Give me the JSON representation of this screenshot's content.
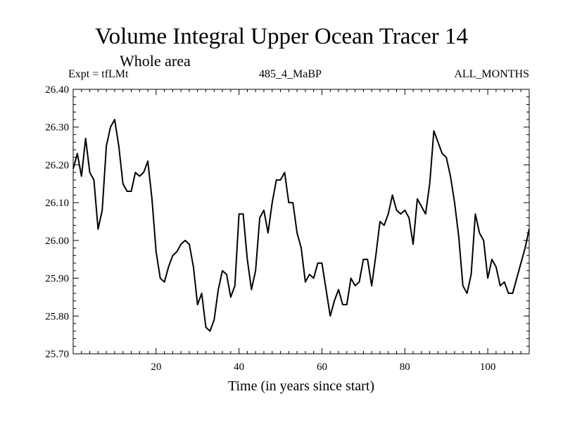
{
  "header": {
    "title": "Volume Integral Upper Ocean Tracer 14",
    "subtitle": "Whole area",
    "expt": "Expt = tfLMt",
    "run": "485_4_MaBP",
    "months": "ALL_MONTHS"
  },
  "chart_data": {
    "type": "line",
    "title": "Volume Integral Upper Ocean Tracer 14",
    "subtitle": "Whole area",
    "xlabel": "Time (in years since start)",
    "ylabel": "",
    "xlim": [
      0,
      110
    ],
    "ylim": [
      25.7,
      26.4
    ],
    "xticks": [
      20,
      40,
      60,
      80,
      100
    ],
    "xtick_labels": [
      "20",
      "40",
      "60",
      "80",
      "100"
    ],
    "yticks": [
      25.7,
      25.8,
      25.9,
      26.0,
      26.1,
      26.2,
      26.3,
      26.4
    ],
    "ytick_labels": [
      "25.70",
      "25.80",
      "25.90",
      "26.00",
      "26.10",
      "26.20",
      "26.30",
      "26.40"
    ],
    "series": [
      {
        "name": "Tracer 14",
        "x": [
          0,
          1,
          2,
          3,
          4,
          5,
          6,
          7,
          8,
          9,
          10,
          11,
          12,
          13,
          14,
          15,
          16,
          17,
          18,
          19,
          20,
          21,
          22,
          23,
          24,
          25,
          26,
          27,
          28,
          29,
          30,
          31,
          32,
          33,
          34,
          35,
          36,
          37,
          38,
          39,
          40,
          41,
          42,
          43,
          44,
          45,
          46,
          47,
          48,
          49,
          50,
          51,
          52,
          53,
          54,
          55,
          56,
          57,
          58,
          59,
          60,
          61,
          62,
          63,
          64,
          65,
          66,
          67,
          68,
          69,
          70,
          71,
          72,
          73,
          74,
          75,
          76,
          77,
          78,
          79,
          80,
          81,
          82,
          83,
          84,
          85,
          86,
          87,
          88,
          89,
          90,
          91,
          92,
          93,
          94,
          95,
          96,
          97,
          98,
          99,
          100,
          101,
          102,
          103,
          104,
          105,
          106,
          107,
          108,
          109,
          110
        ],
        "values": [
          26.19,
          26.23,
          26.17,
          26.27,
          26.18,
          26.16,
          26.03,
          26.08,
          26.25,
          26.3,
          26.32,
          26.25,
          26.15,
          26.13,
          26.13,
          26.18,
          26.17,
          26.18,
          26.21,
          26.11,
          25.97,
          25.9,
          25.89,
          25.93,
          25.96,
          25.97,
          25.99,
          26.0,
          25.99,
          25.93,
          25.83,
          25.86,
          25.77,
          25.76,
          25.79,
          25.87,
          25.92,
          25.91,
          25.85,
          25.88,
          26.07,
          26.07,
          25.95,
          25.87,
          25.92,
          26.06,
          26.08,
          26.02,
          26.1,
          26.16,
          26.16,
          26.18,
          26.1,
          26.1,
          26.02,
          25.98,
          25.89,
          25.91,
          25.9,
          25.94,
          25.94,
          25.87,
          25.8,
          25.84,
          25.87,
          25.83,
          25.83,
          25.9,
          25.88,
          25.89,
          25.95,
          25.95,
          25.88,
          25.96,
          26.05,
          26.04,
          26.07,
          26.12,
          26.08,
          26.07,
          26.08,
          26.06,
          25.99,
          26.11,
          26.09,
          26.07,
          26.15,
          26.29,
          26.26,
          26.23,
          26.22,
          26.17,
          26.1,
          26.01,
          25.88,
          25.86,
          25.91,
          26.07,
          26.02,
          26.0,
          25.9,
          25.95,
          25.93,
          25.88,
          25.89,
          25.86,
          25.86,
          25.9,
          25.94,
          25.98,
          26.03
        ]
      }
    ]
  }
}
